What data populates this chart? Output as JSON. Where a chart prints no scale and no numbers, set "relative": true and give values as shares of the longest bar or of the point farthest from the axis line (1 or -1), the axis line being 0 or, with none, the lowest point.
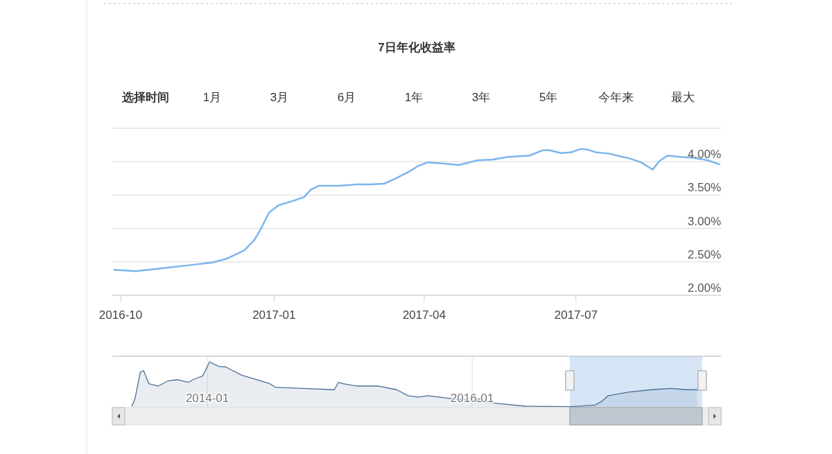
{
  "chart_data": [
    {
      "type": "line",
      "title": "7日年化收益率",
      "annotations": [
        "选择时间",
        "1月",
        "3月",
        "6月",
        "1年",
        "3年",
        "5年",
        "今年来",
        "最大"
      ],
      "x": [
        "2016-09-27",
        "2016-10-10",
        "2016-10-28",
        "2016-11-11",
        "2016-11-25",
        "2016-12-04",
        "2016-12-14",
        "2016-12-20",
        "2016-12-24",
        "2016-12-29",
        "2017-01-04",
        "2017-01-12",
        "2017-01-19",
        "2017-01-23",
        "2017-01-28",
        "2017-02-09",
        "2017-02-20",
        "2017-02-28",
        "2017-03-08",
        "2017-03-15",
        "2017-03-23",
        "2017-03-28",
        "2017-04-03",
        "2017-04-13",
        "2017-04-22",
        "2017-05-03",
        "2017-05-12",
        "2017-05-21",
        "2017-06-03",
        "2017-06-11",
        "2017-06-15",
        "2017-06-22",
        "2017-06-28",
        "2017-07-04",
        "2017-07-08",
        "2017-07-13",
        "2017-07-21",
        "2017-07-29",
        "2017-08-02",
        "2017-08-09",
        "2017-08-16",
        "2017-08-20",
        "2017-08-25",
        "2017-09-02",
        "2017-09-09",
        "2017-09-18",
        "2017-09-25"
      ],
      "series": [
        {
          "color": "#7cb5ec",
          "values": [
            2.38,
            2.36,
            2.41,
            2.45,
            2.49,
            2.55,
            2.67,
            2.82,
            2.99,
            3.24,
            3.35,
            3.41,
            3.47,
            3.58,
            3.64,
            3.64,
            3.66,
            3.66,
            3.67,
            3.75,
            3.85,
            3.93,
            3.99,
            3.97,
            3.95,
            4.02,
            4.03,
            4.07,
            4.09,
            4.17,
            4.17,
            4.13,
            4.14,
            4.19,
            4.18,
            4.14,
            4.12,
            4.07,
            4.05,
            3.99,
            3.88,
            4.01,
            4.09,
            4.07,
            4.06,
            4.02,
            3.96
          ]
        }
      ],
      "xlim": [
        "2016-09-26",
        "2017-09-26"
      ],
      "xticks": [
        "2016-10",
        "2017-01",
        "2017-04",
        "2017-07"
      ],
      "ylim": [
        2,
        4.5
      ],
      "yticks": [
        {
          "value": 2,
          "label": "2.00%"
        },
        {
          "value": 2.5,
          "label": "2.50%"
        },
        {
          "value": 3,
          "label": "3.00%"
        },
        {
          "value": 3.5,
          "label": "3.50%"
        },
        {
          "value": 4,
          "label": "4.00%"
        },
        {
          "value": 4.5,
          "label": null
        }
      ],
      "grid": "y",
      "marker": "none",
      "line_style": "solid"
    },
    {
      "type": "area",
      "relative": true,
      "x": [
        "2013-06-07",
        "2013-06-16",
        "2013-06-30",
        "2013-07-09",
        "2013-07-24",
        "2013-08-18",
        "2013-09-14",
        "2013-10-09",
        "2013-11-10",
        "2013-11-22",
        "2013-12-19",
        "2014-01-07",
        "2014-02-01",
        "2014-02-20",
        "2014-04-05",
        "2014-06-20",
        "2014-07-09",
        "2014-09-24",
        "2014-12-17",
        "2014-12-28",
        "2015-01-11",
        "2015-02-18",
        "2015-04-16",
        "2015-06-07",
        "2015-07-08",
        "2015-08-05",
        "2015-09-01",
        "2015-10-20",
        "2016-01-05",
        "2016-03-21",
        "2016-05-25",
        "2016-09-28",
        "2016-12-03",
        "2016-12-22",
        "2017-01-10",
        "2017-03-08",
        "2017-05-10",
        "2017-07-01",
        "2017-08-14",
        "2017-09-12"
      ],
      "series": [
        {
          "color": "#4a6f96",
          "values": [
            0.03,
            0.21,
            0.77,
            0.81,
            0.52,
            0.47,
            0.58,
            0.61,
            0.55,
            0.61,
            0.69,
            1,
            0.9,
            0.89,
            0.71,
            0.53,
            0.44,
            0.42,
            0.39,
            0.55,
            0.52,
            0.47,
            0.47,
            0.39,
            0.26,
            0.23,
            0.26,
            0.21,
            0.15,
            0.08,
            0.03,
            0.02,
            0.05,
            0.13,
            0.26,
            0.34,
            0.39,
            0.42,
            0.39,
            0.39
          ]
        }
      ],
      "xlim": [
        "2013-04-14",
        "2017-11-17"
      ],
      "xticks": [
        "2014-01",
        "2016-01"
      ],
      "bands": [
        {
          "axis": "x",
          "from": "2016-09-26",
          "to": "2017-09-26",
          "color": "#cfe0f3"
        }
      ],
      "grid": "x",
      "marker": "none",
      "line_style": "solid"
    }
  ]
}
